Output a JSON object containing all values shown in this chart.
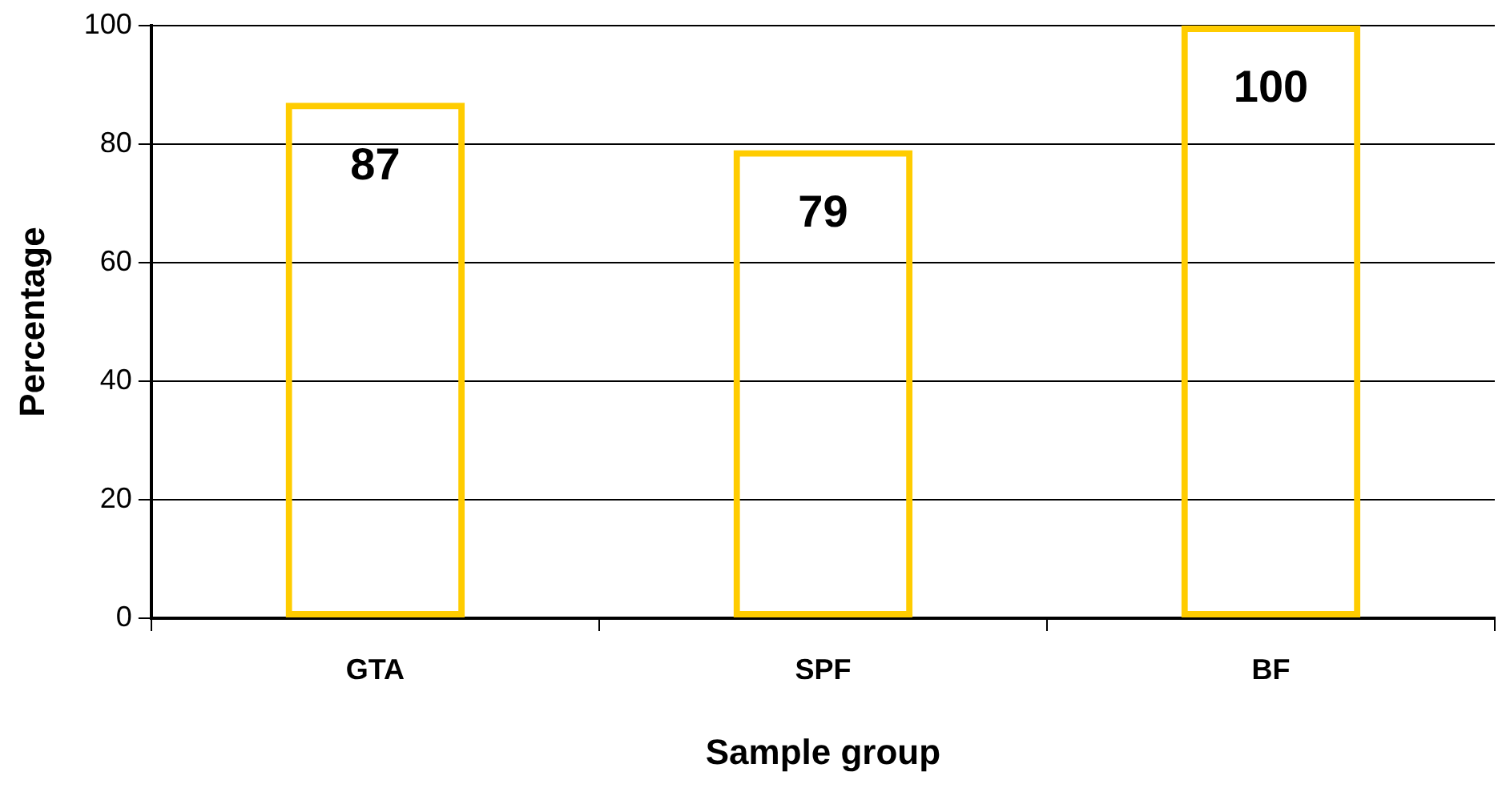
{
  "chart_data": {
    "type": "bar",
    "xlabel": "Sample group",
    "ylabel": "Percentage",
    "categories": [
      "GTA",
      "SPF",
      "BF"
    ],
    "series": [
      {
        "color": "#ffcc00",
        "values": [
          87,
          79,
          100
        ]
      }
    ],
    "ylim": [
      0,
      100
    ],
    "yticks": [
      0,
      20,
      40,
      60,
      80,
      100
    ],
    "grid": "y",
    "legend": false,
    "data_labels": true
  }
}
